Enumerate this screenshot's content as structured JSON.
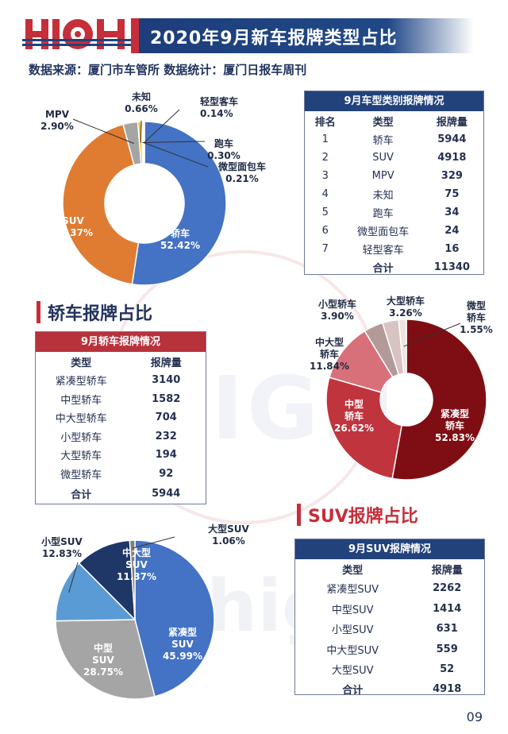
{
  "header": {
    "logo_text": "HIGH",
    "title": "2020年9月新车报牌类型占比",
    "source": "数据来源：厦门市车管所  数据统计：厦门日报车周刊"
  },
  "watermark": {
    "logo_text": "HIGH",
    "brand_text": "high车"
  },
  "colors": {
    "navy": "#22427c",
    "crimson": "#b8323c",
    "blue": "#4472c4",
    "orange": "#e07b32"
  },
  "page_number": "09",
  "section_sedan": {
    "title": "轿车报牌占比"
  },
  "section_suv": {
    "title": "SUV报牌占比"
  },
  "table_types": {
    "title": "9月车型类别报牌情况",
    "headers": [
      "排名",
      "类型",
      "报牌量"
    ],
    "rows": [
      [
        "1",
        "轿车",
        "5944"
      ],
      [
        "2",
        "SUV",
        "4918"
      ],
      [
        "3",
        "MPV",
        "329"
      ],
      [
        "4",
        "未知",
        "75"
      ],
      [
        "5",
        "跑车",
        "34"
      ],
      [
        "6",
        "微型面包车",
        "24"
      ],
      [
        "7",
        "轻型客车",
        "16"
      ]
    ],
    "total_label": "合计",
    "total_value": "11340"
  },
  "table_sedan": {
    "title": "9月轿车报牌情况",
    "headers": [
      "类型",
      "报牌量"
    ],
    "rows": [
      [
        "紧凑型轿车",
        "3140"
      ],
      [
        "中型轿车",
        "1582"
      ],
      [
        "中大型轿车",
        "704"
      ],
      [
        "小型轿车",
        "232"
      ],
      [
        "大型轿车",
        "194"
      ],
      [
        "微型轿车",
        "92"
      ]
    ],
    "total_label": "合计",
    "total_value": "5944"
  },
  "table_suv": {
    "title": "9月SUV报牌情况",
    "headers": [
      "类型",
      "报牌量"
    ],
    "rows": [
      [
        "紧凑型SUV",
        "2262"
      ],
      [
        "中型SUV",
        "1414"
      ],
      [
        "小型SUV",
        "631"
      ],
      [
        "中大型SUV",
        "559"
      ],
      [
        "大型SUV",
        "52"
      ]
    ],
    "total_label": "合计",
    "total_value": "4918"
  },
  "chart_data": [
    {
      "type": "pie",
      "donut": true,
      "slices": [
        {
          "label": "轿车",
          "value": 52.42,
          "display": "52.42%",
          "color": "#4472c4"
        },
        {
          "label": "SUV",
          "value": 43.37,
          "display": "43.37%",
          "color": "#e07b32"
        },
        {
          "label": "MPV",
          "value": 2.9,
          "display": "2.90%",
          "color": "#a5a5a5"
        },
        {
          "label": "未知",
          "value": 0.66,
          "display": "0.66%",
          "color": "#ffc000"
        },
        {
          "label": "跑车",
          "value": 0.3,
          "display": "0.30%",
          "color": "#5b9bd5"
        },
        {
          "label": "微型面包车",
          "value": 0.21,
          "display": "0.21%",
          "color": "#70ad47"
        },
        {
          "label": "轻型客车",
          "value": 0.14,
          "display": "0.14%",
          "color": "#264478"
        }
      ]
    },
    {
      "type": "pie",
      "donut": true,
      "slices": [
        {
          "label": "紧凑型轿车",
          "value": 52.83,
          "display": "52.83%",
          "color": "#7f0e14"
        },
        {
          "label": "中型轿车",
          "value": 26.62,
          "display": "26.62%",
          "color": "#c0343e"
        },
        {
          "label": "中大型轿车",
          "value": 11.84,
          "display": "11.84%",
          "color": "#d8707a"
        },
        {
          "label": "小型轿车",
          "value": 3.9,
          "display": "3.90%",
          "color": "#b39a98"
        },
        {
          "label": "大型轿车",
          "value": 3.26,
          "display": "3.26%",
          "color": "#d7c3c1"
        },
        {
          "label": "微型轿车",
          "value": 1.55,
          "display": "1.55%",
          "color": "#ece2e0"
        }
      ]
    },
    {
      "type": "pie",
      "donut": false,
      "slices": [
        {
          "label": "紧凑型SUV",
          "value": 45.99,
          "display": "45.99%",
          "color": "#4472c4"
        },
        {
          "label": "中型SUV",
          "value": 28.75,
          "display": "28.75%",
          "color": "#a5a5a5"
        },
        {
          "label": "小型SUV",
          "value": 12.83,
          "display": "12.83%",
          "color": "#5b9bd5"
        },
        {
          "label": "中大型SUV",
          "value": 11.37,
          "display": "11.37%",
          "color": "#1f3767"
        },
        {
          "label": "大型SUV",
          "value": 1.06,
          "display": "1.06%",
          "color": "#7f7f7f"
        }
      ]
    }
  ]
}
